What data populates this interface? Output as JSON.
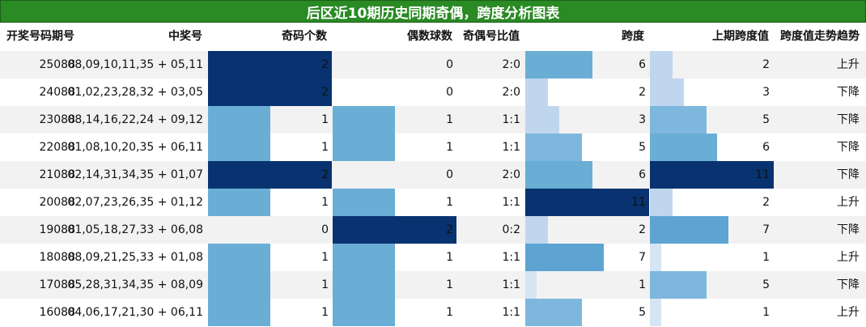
{
  "title": "后区近10期历史同期奇偶，跨度分析图表",
  "columns": {
    "issue": "开奖号码期号",
    "numbers": "中奖号",
    "odd": "奇码个数",
    "even": "偶数球数",
    "ratio": "奇偶号比值",
    "span": "跨度",
    "prev_span": "上期跨度值",
    "trend": "跨度值走势趋势"
  },
  "colors": {
    "title_bg": "#2a8a24",
    "row_alt": "#f2f2f2",
    "scale": [
      "#eef3fb",
      "#d6e5f4",
      "#c0d6ee",
      "#9ac4e3",
      "#7eb7dd",
      "#6aaed6",
      "#5da4d3",
      "#3f8dc8",
      "#2a76b8",
      "#083370"
    ]
  },
  "rows": [
    {
      "issue": "25088",
      "numbers": "08,09,10,11,35 + 05,11",
      "odd": 2,
      "even": 0,
      "ratio": "2:0",
      "span": 6,
      "prev_span": 2,
      "trend": "上升"
    },
    {
      "issue": "24088",
      "numbers": "01,02,23,28,32 + 03,05",
      "odd": 2,
      "even": 0,
      "ratio": "2:0",
      "span": 2,
      "prev_span": 3,
      "trend": "下降"
    },
    {
      "issue": "23088",
      "numbers": "08,14,16,22,24 + 09,12",
      "odd": 1,
      "even": 1,
      "ratio": "1:1",
      "span": 3,
      "prev_span": 5,
      "trend": "下降"
    },
    {
      "issue": "22088",
      "numbers": "01,08,10,20,35 + 06,11",
      "odd": 1,
      "even": 1,
      "ratio": "1:1",
      "span": 5,
      "prev_span": 6,
      "trend": "下降"
    },
    {
      "issue": "21088",
      "numbers": "02,14,31,34,35 + 01,07",
      "odd": 2,
      "even": 0,
      "ratio": "2:0",
      "span": 6,
      "prev_span": 11,
      "trend": "下降"
    },
    {
      "issue": "20088",
      "numbers": "02,07,23,26,35 + 01,12",
      "odd": 1,
      "even": 1,
      "ratio": "1:1",
      "span": 11,
      "prev_span": 2,
      "trend": "上升"
    },
    {
      "issue": "19088",
      "numbers": "01,05,18,27,33 + 06,08",
      "odd": 0,
      "even": 2,
      "ratio": "0:2",
      "span": 2,
      "prev_span": 7,
      "trend": "下降"
    },
    {
      "issue": "18088",
      "numbers": "08,09,21,25,33 + 01,08",
      "odd": 1,
      "even": 1,
      "ratio": "1:1",
      "span": 7,
      "prev_span": 1,
      "trend": "上升"
    },
    {
      "issue": "17088",
      "numbers": "05,28,31,34,35 + 08,09",
      "odd": 1,
      "even": 1,
      "ratio": "1:1",
      "span": 1,
      "prev_span": 5,
      "trend": "下降"
    },
    {
      "issue": "16088",
      "numbers": "04,06,17,21,30 + 06,11",
      "odd": 1,
      "even": 1,
      "ratio": "1:1",
      "span": 5,
      "prev_span": 1,
      "trend": "上升"
    }
  ]
}
